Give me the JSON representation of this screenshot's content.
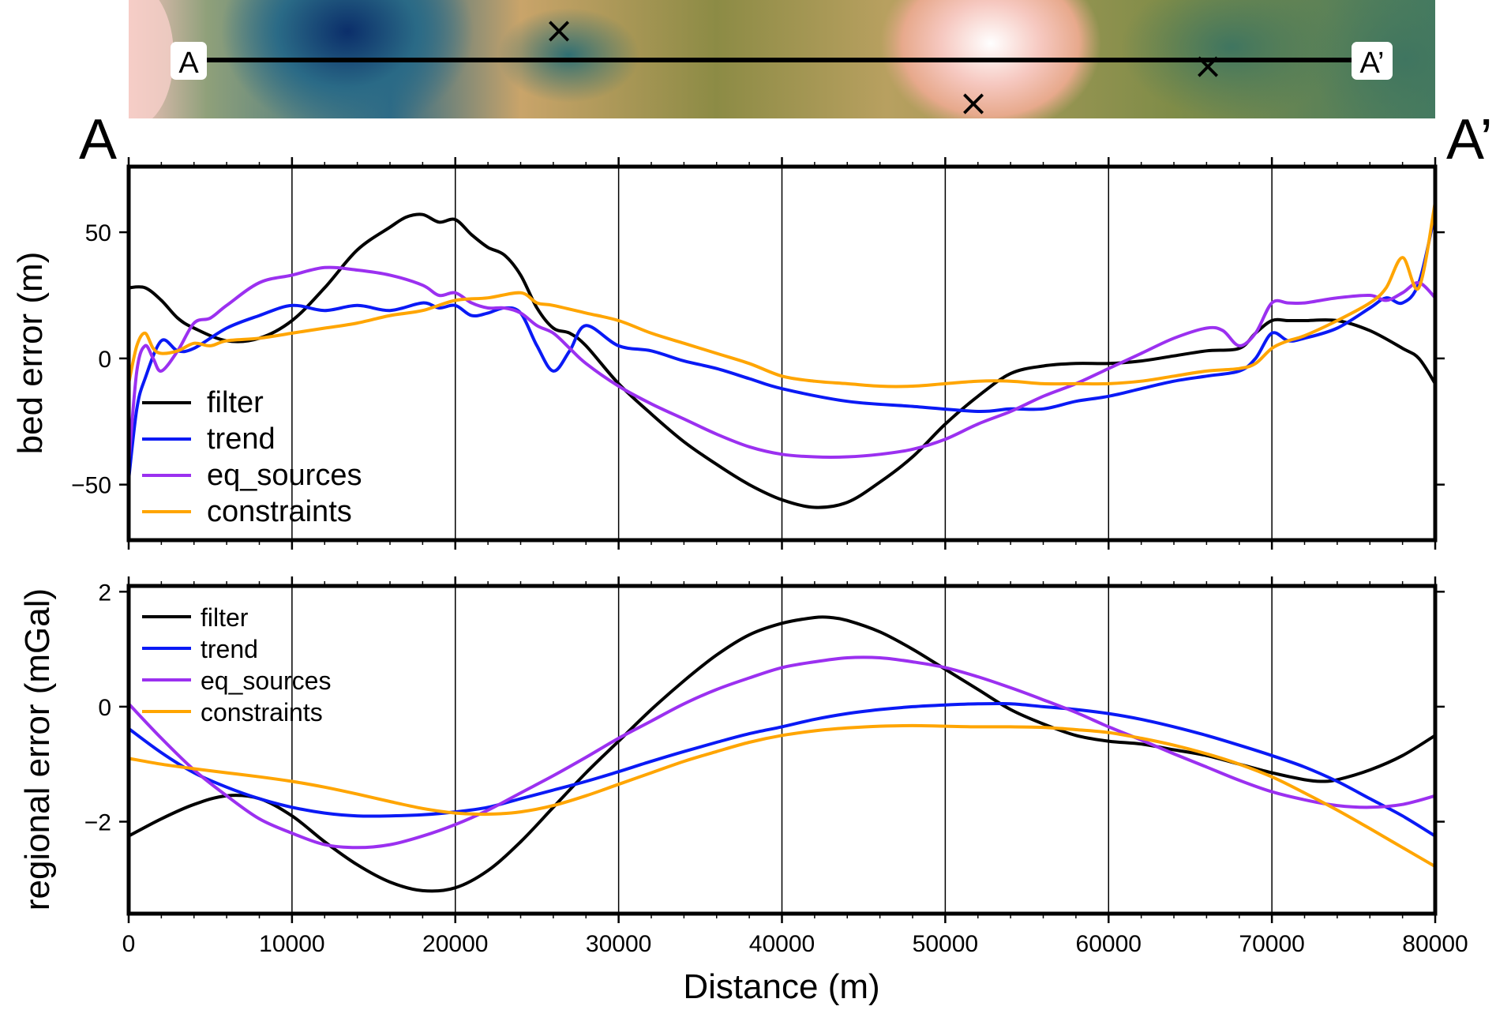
{
  "profile_map": {
    "start_label": "A",
    "end_label": "A’",
    "marker_symbol": "×"
  },
  "chart_data": [
    {
      "type": "line",
      "title": "",
      "xlabel": "",
      "ylabel": "bed error (m)",
      "xlim": [
        0,
        80000
      ],
      "ylim": [
        -72,
        76
      ],
      "x_ticks": [
        0,
        10000,
        20000,
        30000,
        40000,
        50000,
        60000,
        70000,
        80000
      ],
      "y_ticks": [
        -50,
        0,
        50
      ],
      "y_tick_labels": [
        "−50",
        "0",
        "50"
      ],
      "grid": "vertical",
      "legend": "bottom-left",
      "series": [
        {
          "name": "filter",
          "color": "#000000",
          "x": [
            0,
            1000,
            2000,
            3000,
            4000,
            6000,
            8000,
            10000,
            12000,
            14000,
            16000,
            17000,
            18000,
            19000,
            20000,
            21000,
            22000,
            23000,
            24000,
            25000,
            26000,
            27000,
            28000,
            30000,
            32000,
            34000,
            36000,
            38000,
            40000,
            42000,
            44000,
            46000,
            48000,
            50000,
            52000,
            54000,
            56000,
            58000,
            60000,
            62000,
            64000,
            66000,
            68000,
            69000,
            70000,
            71000,
            72000,
            74000,
            76000,
            78000,
            79000,
            80000
          ],
          "y": [
            28,
            28,
            23,
            16,
            12,
            7,
            8,
            15,
            28,
            43,
            52,
            56,
            57,
            54,
            55,
            49,
            44,
            41,
            33,
            20,
            12,
            10,
            5,
            -10,
            -22,
            -33,
            -42,
            -50,
            -56,
            -59,
            -57,
            -49,
            -39,
            -26,
            -15,
            -6,
            -3,
            -2,
            -2,
            -1,
            1,
            3,
            4,
            10,
            15,
            15,
            15,
            15,
            11,
            4,
            0,
            -10
          ]
        },
        {
          "name": "trend",
          "color": "#0a1af5",
          "x": [
            0,
            500,
            1000,
            2000,
            3000,
            4000,
            6000,
            8000,
            10000,
            12000,
            14000,
            16000,
            18000,
            19000,
            20000,
            21000,
            22000,
            23000,
            24000,
            25000,
            26000,
            27000,
            28000,
            30000,
            32000,
            34000,
            36000,
            38000,
            40000,
            44000,
            48000,
            52000,
            54000,
            56000,
            58000,
            60000,
            62000,
            64000,
            66000,
            68000,
            69000,
            70000,
            71000,
            72000,
            74000,
            76000,
            77000,
            78000,
            79000,
            80000
          ],
          "y": [
            -48,
            -20,
            -8,
            7,
            3,
            4,
            12,
            17,
            21,
            19,
            21,
            19,
            22,
            20,
            21,
            17,
            18,
            20,
            18,
            5,
            -5,
            3,
            13,
            5,
            3,
            -1,
            -4,
            -8,
            -12,
            -17,
            -19,
            -21,
            -20,
            -20,
            -17,
            -15,
            -12,
            -9,
            -7,
            -5,
            0,
            10,
            7,
            8,
            12,
            20,
            24,
            22,
            30,
            58
          ]
        },
        {
          "name": "eq_sources",
          "color": "#9b30f0",
          "x": [
            0,
            500,
            1000,
            1500,
            2000,
            3000,
            4000,
            5000,
            6000,
            8000,
            10000,
            12000,
            14000,
            16000,
            18000,
            19000,
            20000,
            21000,
            22000,
            23000,
            24000,
            25000,
            26000,
            27000,
            28000,
            30000,
            32000,
            34000,
            36000,
            38000,
            40000,
            42000,
            44000,
            46000,
            48000,
            50000,
            52000,
            54000,
            56000,
            58000,
            60000,
            62000,
            64000,
            66000,
            67000,
            68000,
            69000,
            70000,
            71000,
            72000,
            74000,
            76000,
            77000,
            78000,
            79000,
            80000
          ],
          "y": [
            -42,
            -5,
            5,
            0,
            -5,
            3,
            14,
            16,
            21,
            30,
            33,
            36,
            35,
            33,
            29,
            25,
            26,
            22,
            20,
            20,
            18,
            13,
            10,
            4,
            -2,
            -11,
            -18,
            -24,
            -30,
            -35,
            -38,
            -39,
            -39,
            -38,
            -36,
            -32,
            -26,
            -21,
            -15,
            -10,
            -4,
            2,
            8,
            12,
            11,
            5,
            10,
            22,
            22,
            22,
            24,
            25,
            23,
            26,
            30,
            24
          ]
        },
        {
          "name": "constraints",
          "color": "#ffa500",
          "x": [
            0,
            500,
            1000,
            1500,
            2000,
            3000,
            4000,
            5000,
            6000,
            8000,
            10000,
            12000,
            14000,
            16000,
            18000,
            20000,
            22000,
            24000,
            25000,
            26000,
            28000,
            30000,
            32000,
            34000,
            36000,
            38000,
            40000,
            42000,
            44000,
            46000,
            48000,
            50000,
            52000,
            54000,
            56000,
            58000,
            60000,
            62000,
            64000,
            66000,
            68000,
            69000,
            70000,
            71000,
            72000,
            74000,
            76000,
            77000,
            78000,
            79000,
            80000
          ],
          "y": [
            -10,
            5,
            10,
            4,
            2,
            3,
            6,
            5,
            7,
            8,
            10,
            12,
            14,
            17,
            19,
            23,
            24,
            26,
            22,
            21,
            18,
            15,
            10,
            6,
            2,
            -2,
            -7,
            -9,
            -10,
            -11,
            -11,
            -10,
            -9,
            -9,
            -10,
            -10,
            -10,
            -9,
            -7,
            -5,
            -4,
            -2,
            4,
            7,
            9,
            15,
            22,
            28,
            40,
            28,
            62
          ]
        }
      ]
    },
    {
      "type": "line",
      "title": "",
      "xlabel": "Distance (m)",
      "ylabel": "regional error (mGal)",
      "xlim": [
        0,
        80000
      ],
      "ylim": [
        -3.6,
        2.1
      ],
      "x_ticks": [
        0,
        10000,
        20000,
        30000,
        40000,
        50000,
        60000,
        70000,
        80000
      ],
      "x_tick_labels": [
        "0",
        "10000",
        "20000",
        "30000",
        "40000",
        "50000",
        "60000",
        "70000",
        "80000"
      ],
      "y_ticks": [
        -2,
        0,
        2
      ],
      "y_tick_labels": [
        "−2",
        "0",
        "2"
      ],
      "grid": "vertical",
      "legend": "top-left",
      "series": [
        {
          "name": "filter",
          "color": "#000000",
          "x": [
            0,
            2000,
            4000,
            6000,
            8000,
            10000,
            12000,
            14000,
            16000,
            18000,
            20000,
            22000,
            24000,
            26000,
            28000,
            30000,
            32000,
            34000,
            36000,
            38000,
            40000,
            42000,
            43000,
            44000,
            46000,
            48000,
            50000,
            52000,
            54000,
            56000,
            58000,
            60000,
            62000,
            64000,
            66000,
            68000,
            70000,
            72000,
            73000,
            74000,
            76000,
            78000,
            80000
          ],
          "y": [
            -2.25,
            -1.95,
            -1.7,
            -1.55,
            -1.6,
            -1.9,
            -2.35,
            -2.75,
            -3.05,
            -3.2,
            -3.15,
            -2.85,
            -2.35,
            -1.75,
            -1.15,
            -0.6,
            -0.05,
            0.45,
            0.9,
            1.25,
            1.45,
            1.55,
            1.55,
            1.5,
            1.3,
            1.0,
            0.65,
            0.3,
            -0.05,
            -0.3,
            -0.5,
            -0.6,
            -0.65,
            -0.75,
            -0.85,
            -1.0,
            -1.15,
            -1.27,
            -1.3,
            -1.27,
            -1.1,
            -0.85,
            -0.5
          ]
        },
        {
          "name": "trend",
          "color": "#0a1af5",
          "x": [
            0,
            2000,
            4000,
            6000,
            8000,
            10000,
            12000,
            14000,
            16000,
            18000,
            20000,
            22000,
            24000,
            26000,
            28000,
            30000,
            32000,
            34000,
            36000,
            38000,
            40000,
            42000,
            44000,
            46000,
            48000,
            50000,
            52000,
            54000,
            56000,
            58000,
            60000,
            62000,
            64000,
            66000,
            68000,
            70000,
            72000,
            74000,
            76000,
            78000,
            80000
          ],
          "y": [
            -0.38,
            -0.8,
            -1.15,
            -1.4,
            -1.6,
            -1.75,
            -1.85,
            -1.9,
            -1.9,
            -1.88,
            -1.83,
            -1.75,
            -1.6,
            -1.45,
            -1.3,
            -1.13,
            -0.95,
            -0.78,
            -0.62,
            -0.47,
            -0.35,
            -0.22,
            -0.12,
            -0.05,
            0.0,
            0.03,
            0.05,
            0.05,
            0.0,
            -0.05,
            -0.12,
            -0.22,
            -0.35,
            -0.5,
            -0.67,
            -0.85,
            -1.05,
            -1.3,
            -1.6,
            -1.9,
            -2.25
          ]
        },
        {
          "name": "eq_sources",
          "color": "#9b30f0",
          "x": [
            0,
            2000,
            4000,
            6000,
            8000,
            10000,
            12000,
            14000,
            16000,
            18000,
            20000,
            22000,
            24000,
            26000,
            28000,
            30000,
            32000,
            34000,
            36000,
            38000,
            40000,
            42000,
            44000,
            46000,
            48000,
            50000,
            52000,
            54000,
            56000,
            58000,
            60000,
            62000,
            64000,
            66000,
            68000,
            70000,
            72000,
            74000,
            76000,
            78000,
            80000
          ],
          "y": [
            0.05,
            -0.55,
            -1.1,
            -1.55,
            -1.95,
            -2.2,
            -2.4,
            -2.45,
            -2.4,
            -2.25,
            -2.05,
            -1.8,
            -1.5,
            -1.2,
            -0.88,
            -0.55,
            -0.25,
            0.05,
            0.3,
            0.5,
            0.68,
            0.78,
            0.85,
            0.85,
            0.78,
            0.68,
            0.52,
            0.33,
            0.12,
            -0.1,
            -0.35,
            -0.58,
            -0.82,
            -1.05,
            -1.28,
            -1.48,
            -1.62,
            -1.72,
            -1.75,
            -1.7,
            -1.55
          ]
        },
        {
          "name": "constraints",
          "color": "#ffa500",
          "x": [
            0,
            2000,
            4000,
            6000,
            8000,
            10000,
            12000,
            14000,
            16000,
            18000,
            20000,
            22000,
            24000,
            26000,
            28000,
            30000,
            32000,
            34000,
            36000,
            38000,
            40000,
            42000,
            44000,
            46000,
            48000,
            50000,
            52000,
            54000,
            56000,
            58000,
            60000,
            62000,
            64000,
            66000,
            68000,
            70000,
            72000,
            74000,
            76000,
            78000,
            80000
          ],
          "y": [
            -0.9,
            -1.0,
            -1.08,
            -1.15,
            -1.22,
            -1.3,
            -1.4,
            -1.52,
            -1.65,
            -1.77,
            -1.85,
            -1.87,
            -1.83,
            -1.72,
            -1.55,
            -1.35,
            -1.15,
            -0.95,
            -0.78,
            -0.62,
            -0.5,
            -0.42,
            -0.37,
            -0.34,
            -0.33,
            -0.34,
            -0.35,
            -0.35,
            -0.36,
            -0.4,
            -0.45,
            -0.55,
            -0.67,
            -0.82,
            -1.0,
            -1.22,
            -1.5,
            -1.8,
            -2.12,
            -2.45,
            -2.78
          ]
        }
      ]
    }
  ]
}
